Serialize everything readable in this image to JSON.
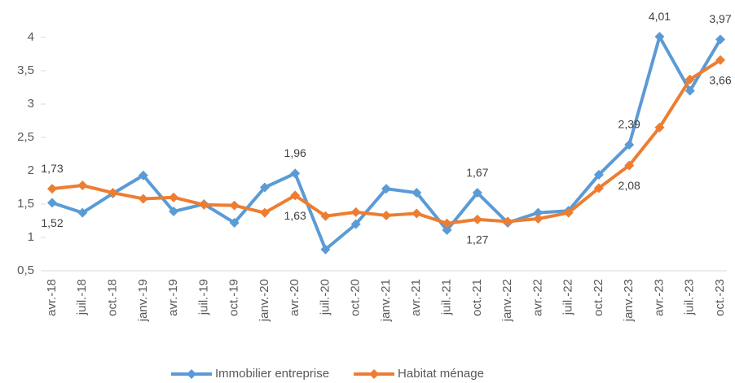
{
  "chart_data": {
    "type": "line",
    "categories": [
      "avr.-18",
      "juil.-18",
      "oct.-18",
      "janv.-19",
      "avr.-19",
      "juil.-19",
      "oct.-19",
      "janv.-20",
      "avr.-20",
      "juil.-20",
      "oct.-20",
      "janv.-21",
      "avr.-21",
      "juil.-21",
      "oct.-21",
      "janv.-22",
      "avr.-22",
      "juil.-22",
      "oct.-22",
      "janv.-23",
      "avr.-23",
      "juil.-23",
      "oct.-23"
    ],
    "series": [
      {
        "name": "Immobilier entreprise",
        "color": "#5b9bd5",
        "values": [
          1.52,
          1.37,
          1.66,
          1.93,
          1.39,
          1.5,
          1.22,
          1.75,
          1.96,
          0.82,
          1.2,
          1.73,
          1.67,
          1.11,
          1.67,
          1.22,
          1.37,
          1.4,
          1.94,
          2.39,
          4.01,
          3.2,
          3.97
        ],
        "value_labels": [
          "1,52",
          null,
          null,
          null,
          null,
          null,
          null,
          null,
          "1,96",
          null,
          null,
          null,
          null,
          null,
          "1,67",
          null,
          null,
          null,
          null,
          "2,39",
          "4,01",
          null,
          "3,97"
        ]
      },
      {
        "name": "Habitat ménage",
        "color": "#ed7d31",
        "values": [
          1.73,
          1.78,
          1.67,
          1.58,
          1.6,
          1.49,
          1.48,
          1.37,
          1.63,
          1.32,
          1.38,
          1.33,
          1.36,
          1.21,
          1.27,
          1.24,
          1.28,
          1.37,
          1.74,
          2.08,
          2.65,
          3.37,
          3.66
        ],
        "value_labels": [
          "1,73",
          null,
          null,
          null,
          null,
          null,
          null,
          null,
          "1,63",
          null,
          null,
          null,
          null,
          null,
          "1,27",
          null,
          null,
          null,
          null,
          "2,08",
          null,
          null,
          "3,66"
        ]
      }
    ],
    "ylim": [
      0.5,
      4
    ],
    "yticks": [
      {
        "value": 0.5,
        "label": "0,5"
      },
      1,
      {
        "value": 1.5,
        "label": "1,5"
      },
      2,
      {
        "value": 2.5,
        "label": "2,5"
      },
      3,
      {
        "value": 3.5,
        "label": "3,5"
      },
      4
    ],
    "legend": "bottom"
  }
}
